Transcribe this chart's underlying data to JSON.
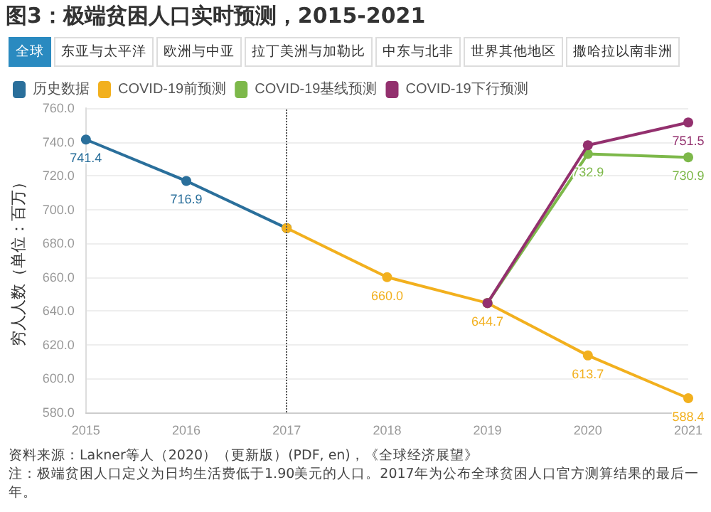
{
  "chart_data": {
    "type": "line",
    "title": "图3：极端贫困人口实时预测，2015-2021",
    "ylabel": "穷人人数（单位：百万）",
    "categories": [
      "2015",
      "2016",
      "2017",
      "2018",
      "2019",
      "2020",
      "2021"
    ],
    "series": [
      {
        "name": "历史数据",
        "color": "#2a6f9b",
        "values": [
          741.4,
          716.9,
          689,
          null,
          null,
          null,
          null
        ],
        "value_labels": [
          "741.4",
          "716.9",
          null,
          null,
          null,
          null,
          null
        ]
      },
      {
        "name": "COVID-19前预测",
        "color": "#f2b01e",
        "values": [
          null,
          null,
          689,
          660.0,
          644.7,
          613.7,
          588.4
        ],
        "value_labels": [
          null,
          null,
          null,
          "660.0",
          "644.7",
          "613.7",
          "588.4"
        ]
      },
      {
        "name": "COVID-19基线预测",
        "color": "#7db84a",
        "values": [
          null,
          null,
          null,
          null,
          644.7,
          732.9,
          730.9
        ],
        "value_labels": [
          null,
          null,
          null,
          null,
          null,
          "732.9",
          "730.9"
        ]
      },
      {
        "name": "COVID-19下行预测",
        "color": "#93306e",
        "values": [
          null,
          null,
          null,
          null,
          644.7,
          738,
          751.5
        ],
        "value_labels": [
          null,
          null,
          null,
          null,
          null,
          null,
          "751.5"
        ]
      }
    ],
    "ylim": [
      580,
      760
    ],
    "yticks": [
      {
        "value": 580,
        "label": "580.0"
      },
      {
        "value": 600,
        "label": "600.0"
      },
      {
        "value": 620,
        "label": "620.0"
      },
      {
        "value": 640,
        "label": "640.0"
      },
      {
        "value": 660,
        "label": "660.0"
      },
      {
        "value": 680,
        "label": "680.0"
      },
      {
        "value": 700,
        "label": "700.0"
      },
      {
        "value": 720,
        "label": "720.0"
      },
      {
        "value": 740,
        "label": "740.0"
      },
      {
        "value": 760,
        "label": "760.0"
      }
    ],
    "ref_lines": [
      {
        "axis": "x",
        "value": "2017",
        "line_style": "dotted",
        "color": "#555555"
      }
    ],
    "annotations": [
      "全球",
      "东亚与太平洋",
      "欧洲与中亚",
      "拉丁美洲与加勒比",
      "中东与北非",
      "世界其他地区",
      "撒哈拉以南非洲",
      "资料来源：Lakner等人（2020）（更新版）(PDF, en)，《全球经济展望》",
      "注：极端贫困人口定义为日均生活费低于1.90美元的人口。2017年为公布全球贫困人口官方测算结果的最后一年。"
    ],
    "grid": "y",
    "legend": "top left",
    "marker": "circle",
    "line_style": "solid"
  }
}
